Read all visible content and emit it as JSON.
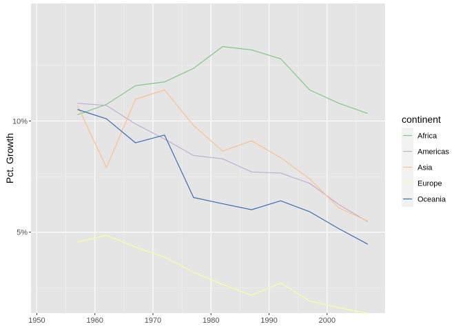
{
  "chart_data": {
    "type": "line",
    "xlabel": "",
    "ylabel": "Pct. Growth",
    "xlim": [
      1949,
      2010
    ],
    "ylim": [
      1.36,
      15.29
    ],
    "x_ticks": [
      1950,
      1960,
      1970,
      1980,
      1990,
      2000
    ],
    "x_tick_labels": [
      "1950",
      "1960",
      "1970",
      "1980",
      "1990",
      "2000"
    ],
    "y_ticks": [
      5,
      10
    ],
    "y_tick_labels": [
      "5%",
      "10%"
    ],
    "grid": true,
    "legend": {
      "title": "continent",
      "placement": "right"
    },
    "x": [
      1957,
      1962,
      1967,
      1972,
      1977,
      1982,
      1987,
      1992,
      1997,
      2002,
      2007
    ],
    "series": [
      {
        "name": "Africa",
        "color": "#7fc97f",
        "values": [
          10.28,
          10.75,
          11.59,
          11.76,
          12.37,
          13.35,
          13.2,
          12.8,
          11.4,
          10.8,
          10.34
        ]
      },
      {
        "name": "Americas",
        "color": "#beaed4",
        "values": [
          10.8,
          10.7,
          9.87,
          9.19,
          8.45,
          8.3,
          7.71,
          7.66,
          7.2,
          6.25,
          5.47
        ]
      },
      {
        "name": "Asia",
        "color": "#fdc086",
        "values": [
          10.7,
          7.9,
          10.98,
          11.4,
          9.8,
          8.65,
          9.11,
          8.35,
          7.4,
          6.1,
          5.5
        ]
      },
      {
        "name": "Europe",
        "color": "#ffff99",
        "values": [
          4.55,
          4.86,
          4.33,
          3.88,
          3.2,
          2.65,
          2.16,
          2.72,
          1.9,
          1.6,
          1.35
        ]
      },
      {
        "name": "Oceania",
        "color": "#386cb0",
        "values": [
          10.52,
          10.1,
          9.02,
          9.37,
          6.56,
          6.28,
          6.01,
          6.41,
          5.92,
          5.16,
          4.46
        ]
      }
    ]
  }
}
